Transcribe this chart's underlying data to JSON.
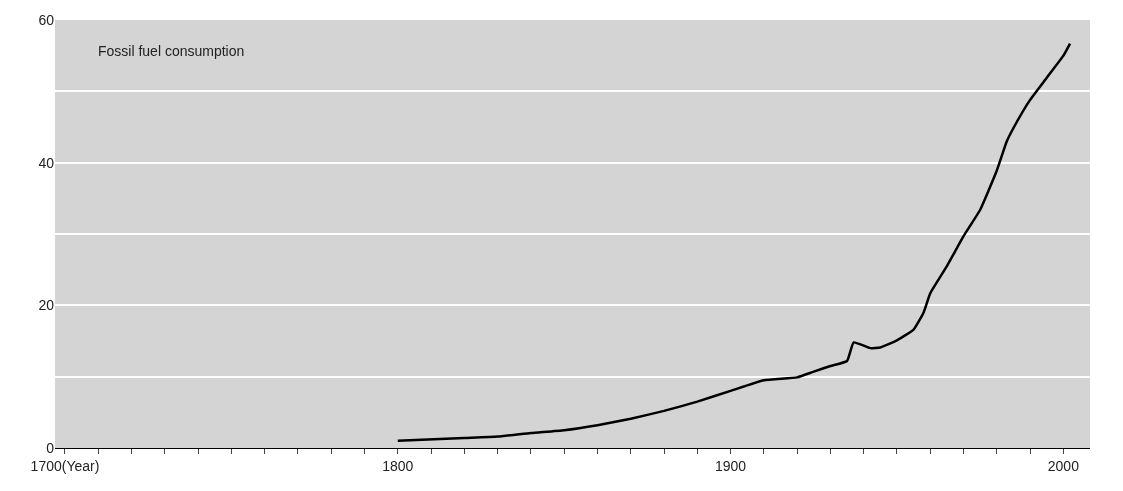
{
  "chart_data": {
    "type": "line",
    "annotations": [
      "Fossil fuel consumption"
    ],
    "x": [
      1800,
      1820,
      1830,
      1840,
      1850,
      1860,
      1870,
      1880,
      1890,
      1900,
      1910,
      1920,
      1925,
      1930,
      1935,
      1937,
      1942,
      1945,
      1950,
      1955,
      1958,
      1960,
      1965,
      1970,
      1975,
      1980,
      1983,
      1986,
      1990,
      1995,
      2000,
      2002
    ],
    "series": [
      {
        "color": "#000000",
        "values": [
          1.0,
          1.4,
          1.6,
          2.1,
          2.5,
          3.2,
          4.1,
          5.2,
          6.5,
          8.0,
          9.5,
          9.9,
          10.7,
          11.5,
          12.2,
          14.8,
          14.0,
          14.1,
          15.1,
          16.6,
          19.0,
          21.7,
          25.5,
          29.7,
          33.4,
          38.9,
          43.0,
          45.7,
          48.8,
          51.9,
          55.0,
          56.7
        ]
      }
    ],
    "xlim": [
      1697,
      2008
    ],
    "xticks": [
      {
        "value": 1700,
        "label": "1700(Year)"
      },
      {
        "value": 1710,
        "label": null
      },
      {
        "value": 1720,
        "label": null
      },
      {
        "value": 1730,
        "label": null
      },
      {
        "value": 1740,
        "label": null
      },
      {
        "value": 1750,
        "label": null
      },
      {
        "value": 1760,
        "label": null
      },
      {
        "value": 1770,
        "label": null
      },
      {
        "value": 1780,
        "label": null
      },
      {
        "value": 1790,
        "label": null
      },
      1800,
      {
        "value": 1810,
        "label": null
      },
      {
        "value": 1820,
        "label": null
      },
      {
        "value": 1830,
        "label": null
      },
      {
        "value": 1840,
        "label": null
      },
      {
        "value": 1850,
        "label": null
      },
      {
        "value": 1860,
        "label": null
      },
      {
        "value": 1870,
        "label": null
      },
      {
        "value": 1880,
        "label": null
      },
      {
        "value": 1890,
        "label": null
      },
      1900,
      {
        "value": 1910,
        "label": null
      },
      {
        "value": 1920,
        "label": null
      },
      {
        "value": 1930,
        "label": null
      },
      {
        "value": 1940,
        "label": null
      },
      {
        "value": 1950,
        "label": null
      },
      {
        "value": 1960,
        "label": null
      },
      {
        "value": 1970,
        "label": null
      },
      {
        "value": 1980,
        "label": null
      },
      {
        "value": 1990,
        "label": null
      },
      2000
    ],
    "ylim": [
      0,
      60
    ],
    "yticks": [
      0,
      {
        "value": 10,
        "label": null
      },
      20,
      {
        "value": 30,
        "label": null
      },
      40,
      {
        "value": 50,
        "label": null
      },
      60
    ],
    "grid": "y",
    "line_style": "solid",
    "marker": "none"
  }
}
